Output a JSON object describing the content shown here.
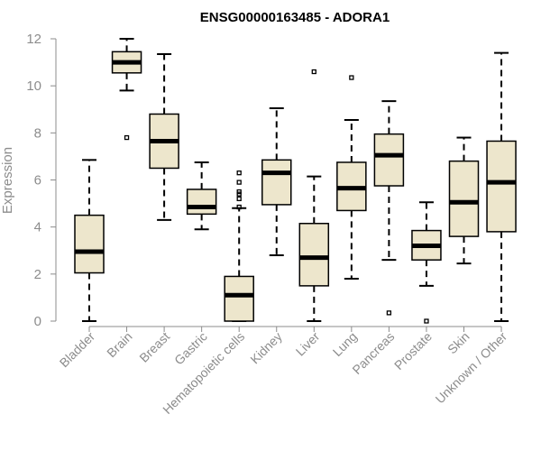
{
  "chart_data": {
    "type": "boxplot",
    "title": "ENSG00000163485 - ADORA1",
    "xlabel": "",
    "ylabel": "Expression",
    "ylim": [
      0,
      12
    ],
    "yticks": [
      0,
      2,
      4,
      6,
      8,
      10,
      12
    ],
    "categories": [
      "Bladder",
      "Brain",
      "Breast",
      "Gastric",
      "Hematopoietic cells",
      "Kidney",
      "Liver",
      "Lung",
      "Pancreas",
      "Prostate",
      "Skin",
      "Unknown / Other"
    ],
    "boxes": [
      {
        "name": "Bladder",
        "whisker_low": 0.0,
        "q1": 2.05,
        "median": 2.95,
        "q3": 4.5,
        "whisker_high": 6.85,
        "outliers": []
      },
      {
        "name": "Brain",
        "whisker_low": 9.8,
        "q1": 10.55,
        "median": 11.0,
        "q3": 11.45,
        "whisker_high": 12.0,
        "outliers": [
          7.8
        ]
      },
      {
        "name": "Breast",
        "whisker_low": 4.3,
        "q1": 6.5,
        "median": 7.65,
        "q3": 8.8,
        "whisker_high": 11.35,
        "outliers": []
      },
      {
        "name": "Gastric",
        "whisker_low": 3.9,
        "q1": 4.55,
        "median": 4.85,
        "q3": 5.6,
        "whisker_high": 6.75,
        "outliers": []
      },
      {
        "name": "Hematopoietic cells",
        "whisker_low": 0.0,
        "q1": 0.0,
        "median": 1.1,
        "q3": 1.9,
        "whisker_high": 4.8,
        "outliers": [
          4.85,
          5.2,
          5.4,
          5.5,
          5.9,
          6.3
        ]
      },
      {
        "name": "Kidney",
        "whisker_low": 2.8,
        "q1": 4.95,
        "median": 6.3,
        "q3": 6.85,
        "whisker_high": 9.05,
        "outliers": []
      },
      {
        "name": "Liver",
        "whisker_low": 0.0,
        "q1": 1.5,
        "median": 2.7,
        "q3": 4.15,
        "whisker_high": 6.15,
        "outliers": [
          10.6
        ]
      },
      {
        "name": "Lung",
        "whisker_low": 1.8,
        "q1": 4.7,
        "median": 5.65,
        "q3": 6.75,
        "whisker_high": 8.55,
        "outliers": [
          10.35
        ]
      },
      {
        "name": "Pancreas",
        "whisker_low": 2.6,
        "q1": 5.75,
        "median": 7.05,
        "q3": 7.95,
        "whisker_high": 9.35,
        "outliers": [
          0.35
        ]
      },
      {
        "name": "Prostate",
        "whisker_low": 1.5,
        "q1": 2.6,
        "median": 3.2,
        "q3": 3.85,
        "whisker_high": 5.05,
        "outliers": [
          0.0
        ]
      },
      {
        "name": "Skin",
        "whisker_low": 2.45,
        "q1": 3.6,
        "median": 5.05,
        "q3": 6.8,
        "whisker_high": 7.8,
        "outliers": []
      },
      {
        "name": "Unknown / Other",
        "whisker_low": 0.0,
        "q1": 3.8,
        "median": 5.9,
        "q3": 7.65,
        "whisker_high": 11.4,
        "outliers": []
      }
    ],
    "grid": false,
    "box_fill": "#ede6cc",
    "box_stroke": "#000000",
    "axis_color": "#8c8c8c",
    "title_color": "#000000"
  }
}
